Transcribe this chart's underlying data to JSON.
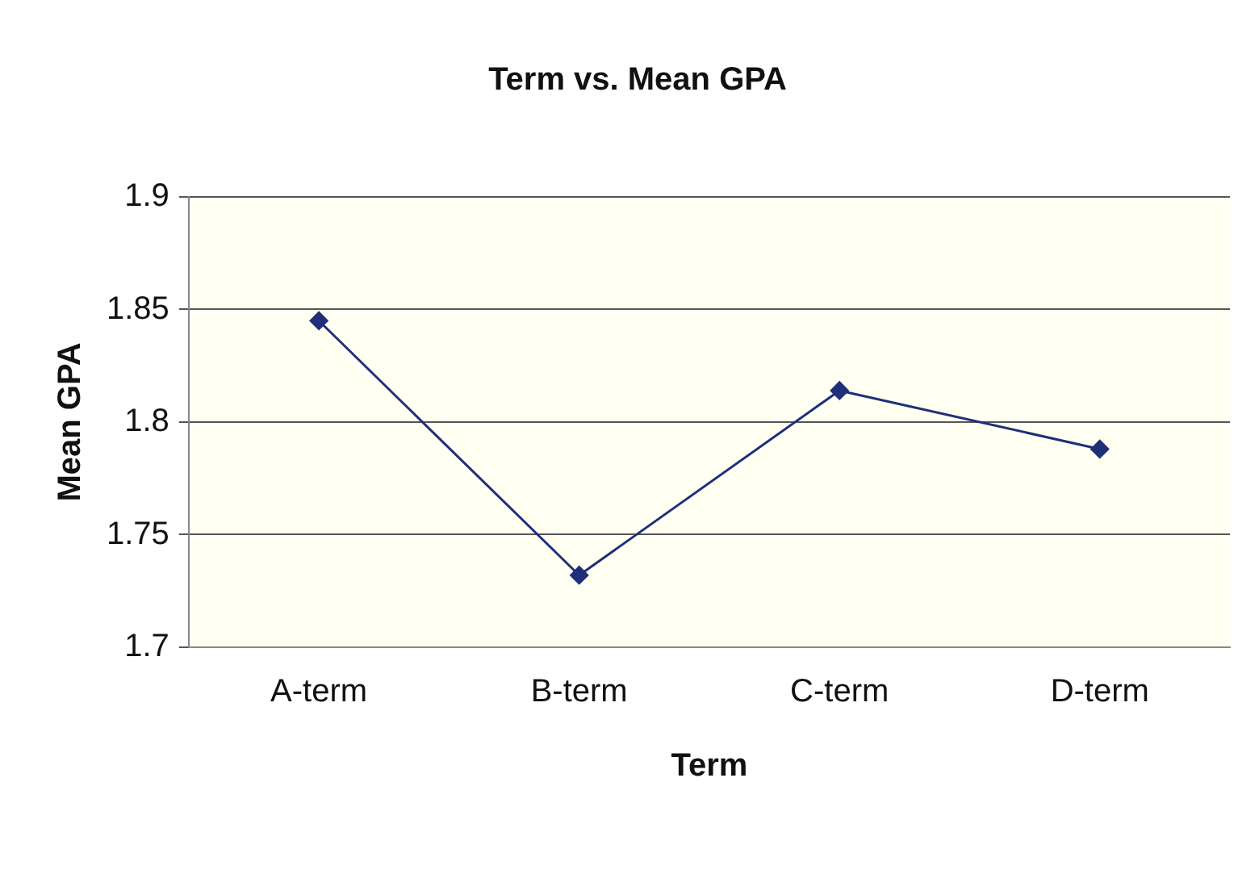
{
  "chart_data": {
    "type": "line",
    "title": "Term vs. Mean GPA",
    "xlabel": "Term",
    "ylabel": "Mean GPA",
    "categories": [
      "A-term",
      "B-term",
      "C-term",
      "D-term"
    ],
    "series": [
      {
        "color": "#1f2f7a",
        "values": [
          1.845,
          1.732,
          1.814,
          1.788
        ]
      }
    ],
    "ylim": [
      1.7,
      1.9
    ],
    "yticks": [
      1.7,
      1.75,
      1.8,
      1.85,
      1.9
    ],
    "grid": "y",
    "legend": false,
    "marker": "diamond",
    "line_style": "solid"
  }
}
